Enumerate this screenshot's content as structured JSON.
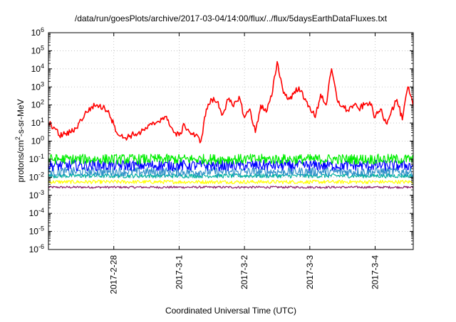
{
  "chart_data": {
    "type": "line",
    "title": "/data/run/goesPlots/archive/2017-03-04/14:00/flux/../flux/5daysEarthDataFluxes.txt",
    "xlabel": "Coordinated Universal Time (UTC)",
    "ylabel_parts": {
      "pre": "protons/cm",
      "sup": "2",
      "post": "-s-sr-MeV"
    },
    "y_scale": "log",
    "ylim": [
      1e-06,
      1000000.0
    ],
    "xlim": [
      "2017-02-27T00:00",
      "2017-03-04T14:00"
    ],
    "grid": true,
    "x_tick_labels": [
      "2017-2-28",
      "2017-3-1",
      "2017-3-2",
      "2017-3-3",
      "2017-3-4"
    ],
    "x_ticks": [
      "2017-02-28T00:00",
      "2017-03-01T00:00",
      "2017-03-02T00:00",
      "2017-03-03T00:00",
      "2017-03-04T00:00"
    ],
    "y_ticks": [
      {
        "value": 1e-06,
        "base": "10",
        "exp": "-6"
      },
      {
        "value": 1e-05,
        "base": "10",
        "exp": "-5"
      },
      {
        "value": 0.0001,
        "base": "10",
        "exp": "-4"
      },
      {
        "value": 0.001,
        "base": "10",
        "exp": "-3"
      },
      {
        "value": 0.01,
        "base": "10",
        "exp": "-2"
      },
      {
        "value": 0.1,
        "base": "10",
        "exp": "-1"
      },
      {
        "value": 1,
        "base": "10",
        "exp": "0"
      },
      {
        "value": 10,
        "base": "10",
        "exp": "1"
      },
      {
        "value": 100,
        "base": "10",
        "exp": "2"
      },
      {
        "value": 1000,
        "base": "10",
        "exp": "3"
      },
      {
        "value": 10000,
        "base": "10",
        "exp": "4"
      },
      {
        "value": 100000,
        "base": "10",
        "exp": "5"
      },
      {
        "value": 1000000,
        "base": "10",
        "exp": "6"
      }
    ],
    "series": [
      {
        "color": "#ff0000",
        "x": [
          "2017-02-27T00:00",
          "2017-02-27T02:00",
          "2017-02-27T04:00",
          "2017-02-27T06:00",
          "2017-02-27T08:00",
          "2017-02-27T10:00",
          "2017-02-27T12:00",
          "2017-02-27T14:00",
          "2017-02-27T16:00",
          "2017-02-27T18:00",
          "2017-02-27T20:00",
          "2017-02-27T22:00",
          "2017-02-28T00:00",
          "2017-02-28T02:00",
          "2017-02-28T04:00",
          "2017-02-28T06:00",
          "2017-02-28T08:00",
          "2017-02-28T10:00",
          "2017-02-28T12:00",
          "2017-02-28T14:00",
          "2017-02-28T16:00",
          "2017-02-28T18:00",
          "2017-02-28T20:00",
          "2017-02-28T22:00",
          "2017-03-01T00:00",
          "2017-03-01T02:00",
          "2017-03-01T04:00",
          "2017-03-01T06:00",
          "2017-03-01T08:00",
          "2017-03-01T10:00",
          "2017-03-01T12:00",
          "2017-03-01T14:00",
          "2017-03-01T16:00",
          "2017-03-01T18:00",
          "2017-03-01T20:00",
          "2017-03-01T22:00",
          "2017-03-02T00:00",
          "2017-03-02T02:00",
          "2017-03-02T04:00",
          "2017-03-02T06:00",
          "2017-03-02T08:00",
          "2017-03-02T10:00",
          "2017-03-02T12:00",
          "2017-03-02T14:00",
          "2017-03-02T16:00",
          "2017-03-02T18:00",
          "2017-03-02T20:00",
          "2017-03-02T22:00",
          "2017-03-03T00:00",
          "2017-03-03T02:00",
          "2017-03-03T04:00",
          "2017-03-03T06:00",
          "2017-03-03T08:00",
          "2017-03-03T10:00",
          "2017-03-03T12:00",
          "2017-03-03T14:00",
          "2017-03-03T16:00",
          "2017-03-03T18:00",
          "2017-03-03T20:00",
          "2017-03-03T22:00",
          "2017-03-04T00:00",
          "2017-03-04T02:00",
          "2017-03-04T04:00",
          "2017-03-04T06:00",
          "2017-03-04T08:00",
          "2017-03-04T10:00",
          "2017-03-04T12:00",
          "2017-03-04T14:00"
        ],
        "y": [
          10,
          6,
          2,
          2.5,
          3,
          5,
          15,
          40,
          80,
          100,
          70,
          50,
          8,
          2,
          1.5,
          2,
          2.5,
          3,
          5,
          8,
          12,
          20,
          15,
          3,
          2,
          8,
          3,
          2,
          1,
          60,
          200,
          150,
          30,
          200,
          80,
          300,
          20,
          60,
          3,
          100,
          40,
          300,
          25000,
          800,
          200,
          400,
          1000,
          200,
          80,
          20,
          400,
          100,
          10000,
          200,
          80,
          50,
          100,
          60,
          100,
          150,
          20,
          60,
          10,
          50,
          200,
          15,
          1000,
          80
        ]
      },
      {
        "color": "#00ee00",
        "x": [
          "2017-02-27T00:00",
          "2017-03-04T14:00"
        ],
        "y": [
          0.1,
          0.1
        ],
        "noise": 0.28
      },
      {
        "color": "#0000ff",
        "x": [
          "2017-02-27T00:00",
          "2017-03-04T14:00"
        ],
        "y": [
          0.045,
          0.045
        ],
        "noise": 0.3
      },
      {
        "color": "#2f8fc8",
        "x": [
          "2017-02-27T00:00",
          "2017-03-04T14:00"
        ],
        "y": [
          0.02,
          0.02
        ],
        "noise": 0.25
      },
      {
        "color": "#00b0a0",
        "x": [
          "2017-02-27T00:00",
          "2017-03-04T14:00"
        ],
        "y": [
          0.012,
          0.012
        ],
        "noise": 0.12
      },
      {
        "color": "#ffff00",
        "x": [
          "2017-02-27T00:00",
          "2017-03-04T14:00"
        ],
        "y": [
          0.0055,
          0.0055
        ],
        "noise": 0.1
      },
      {
        "color": "#8a1a6a",
        "x": [
          "2017-02-27T00:00",
          "2017-03-04T14:00"
        ],
        "y": [
          0.0028,
          0.0028
        ],
        "noise": 0.06
      }
    ]
  }
}
